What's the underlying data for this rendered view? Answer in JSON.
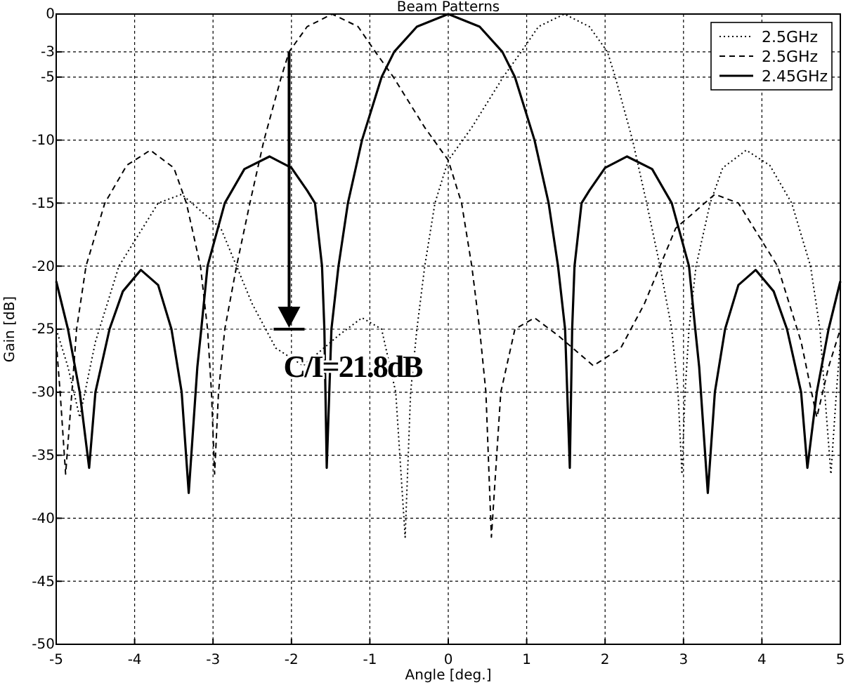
{
  "chart_data": {
    "type": "line",
    "title": "Beam Patterns",
    "xlabel": "Angle [deg.]",
    "ylabel": "Gain [dB]",
    "xlim": [
      -5,
      5
    ],
    "xticks": [
      -5,
      -4,
      -3,
      -2,
      -1,
      0,
      1,
      2,
      3,
      4,
      5
    ],
    "ylim": [
      -50,
      0
    ],
    "yticks": [
      0,
      -3,
      -5,
      -10,
      -15,
      -20,
      -25,
      -30,
      -35,
      -40,
      -45,
      -50
    ],
    "grid": true,
    "legend": "top right",
    "annotations": [
      {
        "text": "C/I=21.8dB",
        "x": -2.03,
        "y": -3
      }
    ],
    "series": [
      {
        "name": "2.5GHz",
        "color": "#000000",
        "line_style": "dotted",
        "x": [
          -5,
          -4.85,
          -4.7,
          -4.5,
          -4.2,
          -3.7,
          -3.4,
          -2.9,
          -2.5,
          -2.2,
          -1.85,
          -1.4,
          -1.1,
          -0.85,
          -0.67,
          -0.55,
          -0.48,
          -0.4,
          -0.3,
          -0.17,
          0,
          0.3,
          0.7,
          0.93,
          1.15,
          1.48,
          1.8,
          2.03,
          2.13,
          2.35,
          2.53,
          2.7,
          2.85,
          2.93,
          2.98,
          3.02,
          3.07,
          3.16,
          3.34,
          3.5,
          3.8,
          4.1,
          4.38,
          4.62,
          4.74,
          4.8,
          4.88,
          4.95,
          5
        ],
        "values": [
          -25,
          -28,
          -32,
          -26,
          -20,
          -15,
          -14.3,
          -17,
          -23,
          -26.5,
          -27.9,
          -25.5,
          -24.1,
          -25,
          -30,
          -41.5,
          -30,
          -25,
          -20,
          -15,
          -11.6,
          -9,
          -5,
          -3,
          -1,
          0,
          -1,
          -3,
          -5,
          -10,
          -15,
          -20,
          -25,
          -30,
          -36.5,
          -30,
          -25,
          -20,
          -15,
          -12.2,
          -10.8,
          -12,
          -15,
          -20,
          -25,
          -30,
          -36.5,
          -30,
          -26
        ]
      },
      {
        "name": "2.5GHz",
        "color": "#000000",
        "line_style": "dashed",
        "x": [
          -5,
          -4.95,
          -4.88,
          -4.8,
          -4.74,
          -4.62,
          -4.38,
          -4.1,
          -3.8,
          -3.5,
          -3.34,
          -3.16,
          -3.07,
          -3.02,
          -2.98,
          -2.93,
          -2.85,
          -2.7,
          -2.53,
          -2.35,
          -2.13,
          -2.03,
          -1.8,
          -1.48,
          -1.15,
          -0.93,
          -0.7,
          -0.3,
          0,
          0.17,
          0.3,
          0.4,
          0.48,
          0.55,
          0.67,
          0.85,
          1.1,
          1.4,
          1.85,
          2.2,
          2.5,
          2.9,
          3.4,
          3.7,
          4.2,
          4.5,
          4.7,
          4.85,
          5
        ],
        "values": [
          -26,
          -30,
          -36.5,
          -30,
          -25,
          -20,
          -15,
          -12,
          -10.8,
          -12.2,
          -15,
          -20,
          -25,
          -30,
          -36.5,
          -30,
          -25,
          -20,
          -15,
          -10,
          -5,
          -3,
          -1,
          0,
          -1,
          -3,
          -5,
          -9,
          -11.6,
          -15,
          -20,
          -25,
          -30,
          -41.5,
          -30,
          -25,
          -24.1,
          -25.5,
          -27.9,
          -26.5,
          -23,
          -17,
          -14.3,
          -15,
          -20,
          -26,
          -32,
          -28,
          -25
        ]
      },
      {
        "name": "2.45GHz",
        "color": "#000000",
        "line_style": "solid",
        "x": [
          -5,
          -4.85,
          -4.7,
          -4.58,
          -4.5,
          -4.32,
          -4.15,
          -3.92,
          -3.7,
          -3.53,
          -3.4,
          -3.31,
          -3.2,
          -3.15,
          -3.07,
          -2.85,
          -2.6,
          -2.28,
          -2,
          -1.8,
          -1.7,
          -1.61,
          -1.58,
          -1.55,
          -1.49,
          -1.4,
          -1.28,
          -1.1,
          -0.85,
          -0.69,
          -0.4,
          0,
          0.4,
          0.69,
          0.85,
          1.1,
          1.28,
          1.4,
          1.49,
          1.55,
          1.58,
          1.61,
          1.7,
          1.8,
          2,
          2.28,
          2.6,
          2.85,
          3.07,
          3.15,
          3.2,
          3.31,
          3.4,
          3.53,
          3.7,
          3.92,
          4.15,
          4.32,
          4.5,
          4.58,
          4.7,
          4.85,
          5
        ],
        "values": [
          -21.2,
          -25,
          -30,
          -36,
          -30,
          -25,
          -22,
          -20.3,
          -21.5,
          -25,
          -30,
          -38,
          -28,
          -25,
          -20,
          -15,
          -12.3,
          -11.3,
          -12.2,
          -14,
          -15,
          -20,
          -25,
          -36,
          -25,
          -20,
          -15,
          -10,
          -5,
          -3,
          -1,
          0,
          -1,
          -3,
          -5,
          -10,
          -15,
          -20,
          -25,
          -36,
          -25,
          -20,
          -15,
          -14,
          -12.2,
          -11.3,
          -12.3,
          -15,
          -20,
          -25,
          -28,
          -38,
          -30,
          -25,
          -21.5,
          -20.3,
          -22,
          -25,
          -30,
          -36,
          -30,
          -25,
          -21.2
        ]
      }
    ]
  }
}
